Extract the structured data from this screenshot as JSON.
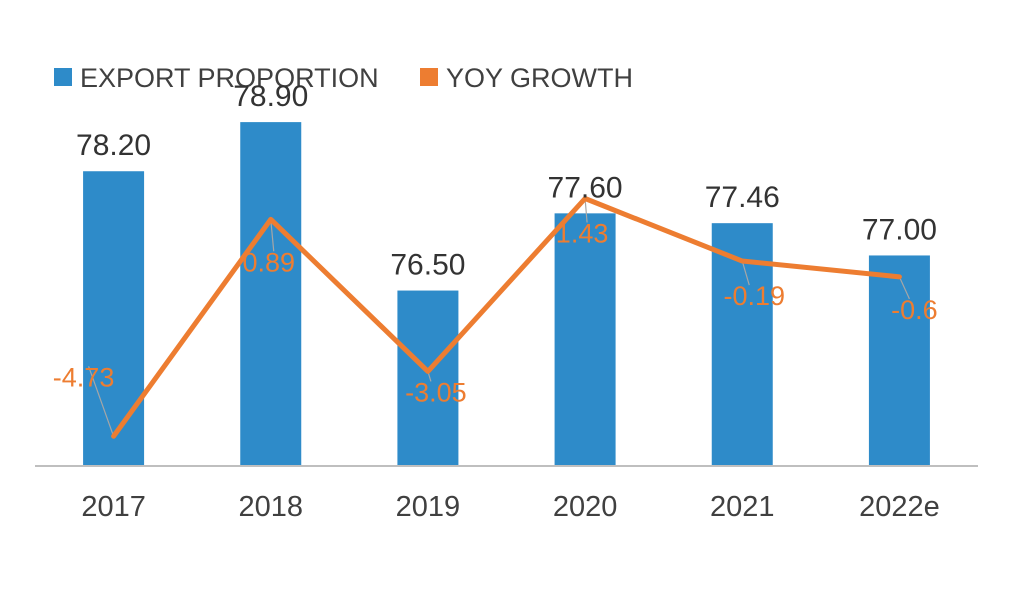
{
  "chart_data": {
    "type": "bar",
    "categories": [
      "2017",
      "2018",
      "2019",
      "2020",
      "2021",
      "2022e"
    ],
    "series": [
      {
        "name": "EXPORT PROPORTION",
        "kind": "bar",
        "axis": "primary",
        "color": "#2E8BC9",
        "values": [
          78.2,
          78.9,
          76.5,
          77.6,
          77.46,
          77.0
        ],
        "labels": [
          "78.20",
          "78.90",
          "76.50",
          "77.60",
          "77.46",
          "77.00"
        ]
      },
      {
        "name": "YOY GROWTH",
        "kind": "line",
        "axis": "secondary",
        "color": "#ED7D31",
        "values": [
          -4.73,
          0.89,
          -3.05,
          1.43,
          -0.19,
          -0.6
        ],
        "labels": [
          "-4.73",
          "0.89",
          "-3.05",
          "1.43",
          "-0.19",
          "-0.6"
        ]
      }
    ],
    "title": "",
    "xlabel": "",
    "ylabel": "",
    "ylim": [
      74,
      79.5
    ],
    "y2lim": [
      -5.5,
      4.5
    ],
    "legend": "top-left",
    "grid": false,
    "axis_color": "#BFBFBF"
  }
}
